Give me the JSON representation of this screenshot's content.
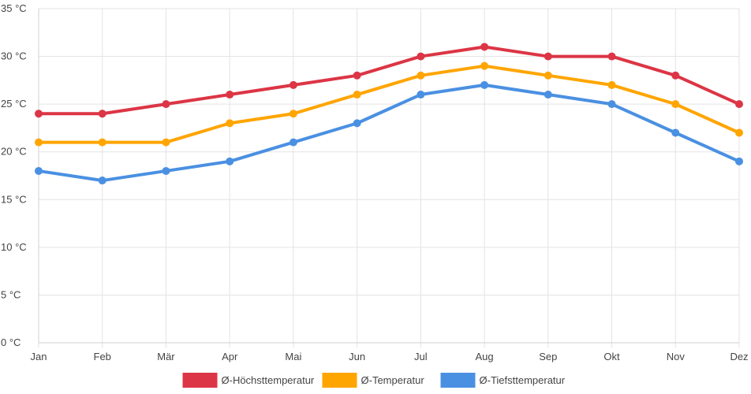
{
  "chart_data": {
    "type": "line",
    "title": "",
    "xlabel": "",
    "ylabel": "",
    "categories": [
      "Jan",
      "Feb",
      "Mär",
      "Apr",
      "Mai",
      "Jun",
      "Jul",
      "Aug",
      "Sep",
      "Okt",
      "Nov",
      "Dez"
    ],
    "ylim": [
      0,
      35
    ],
    "y_ticks": [
      0,
      5,
      10,
      15,
      20,
      25,
      30,
      35
    ],
    "y_tick_labels": [
      "0 °C",
      "5 °C",
      "10 °C",
      "15 °C",
      "20 °C",
      "25 °C",
      "30 °C",
      "35 °C"
    ],
    "grid": true,
    "legend_position": "bottom",
    "series": [
      {
        "name": "Ø-Höchsttemperatur",
        "color": "#dc3545",
        "values": [
          24,
          24,
          25,
          26,
          27,
          28,
          30,
          31,
          30,
          30,
          28,
          25
        ]
      },
      {
        "name": "Ø-Temperatur",
        "color": "#ffa500",
        "values": [
          21,
          21,
          21,
          23,
          24,
          26,
          28,
          29,
          28,
          27,
          25,
          22
        ]
      },
      {
        "name": "Ø-Tiefsttemperatur",
        "color": "#4a90e2",
        "values": [
          18,
          17,
          18,
          19,
          21,
          23,
          26,
          27,
          26,
          25,
          22,
          19
        ]
      }
    ]
  }
}
